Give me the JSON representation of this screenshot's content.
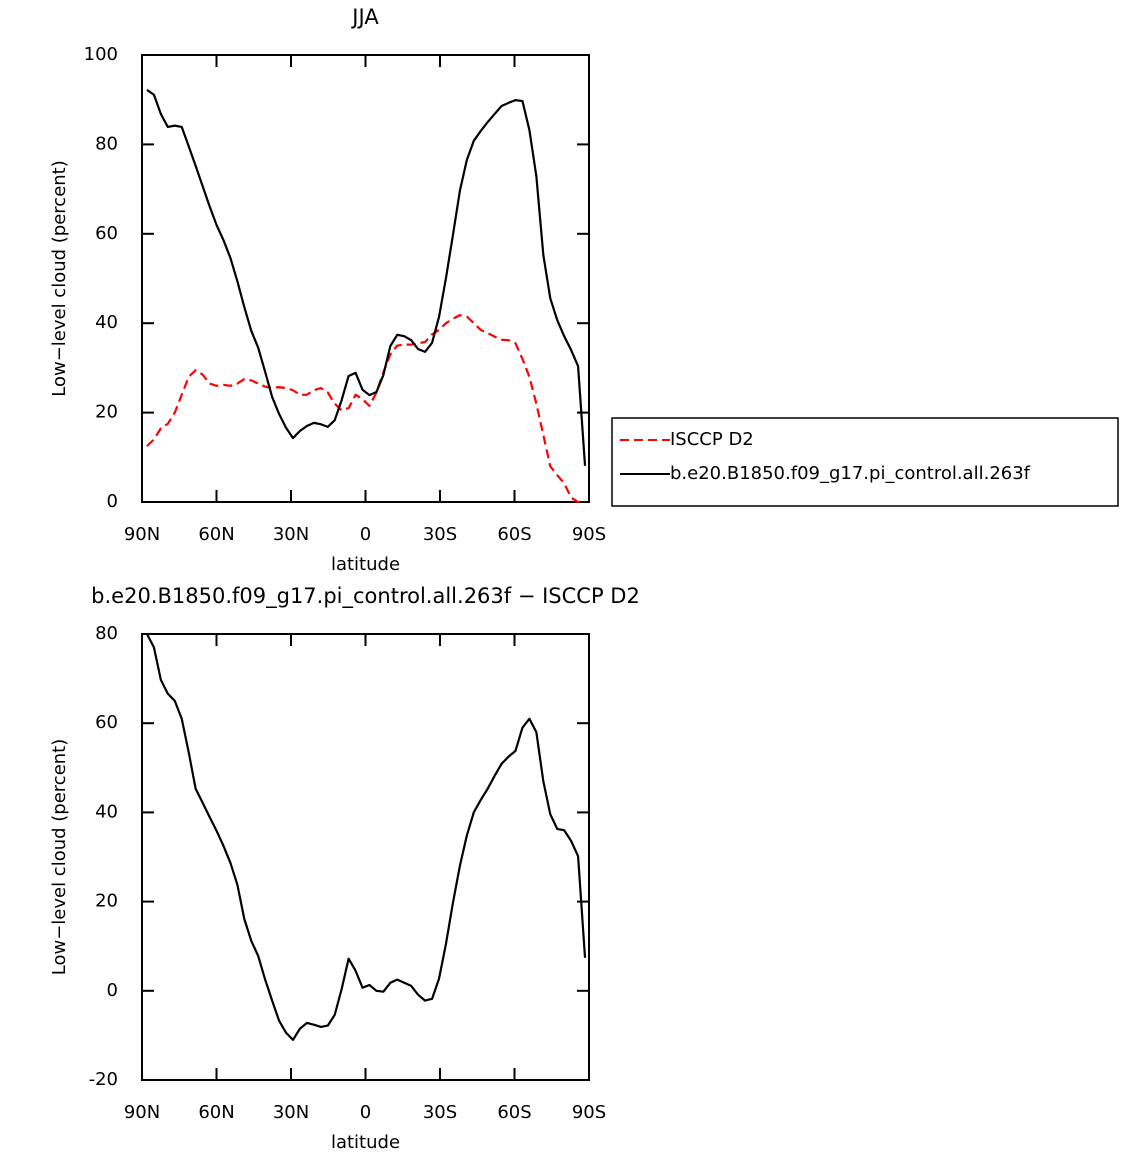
{
  "chart_data": [
    {
      "type": "line",
      "title": "JJA",
      "xlabel": "latitude",
      "ylabel": "Low−level cloud (percent)",
      "x": [
        88,
        85.2,
        82.4,
        79.6,
        76.8,
        74,
        71.2,
        68.4,
        65.6,
        62.8,
        60,
        57.2,
        54.4,
        51.6,
        48.8,
        46,
        43.2,
        40.4,
        37.6,
        34.8,
        32,
        29.2,
        26.4,
        23.6,
        20.8,
        18,
        15.2,
        12.4,
        9.6,
        6.8,
        4,
        1.2,
        -1.6,
        -4.4,
        -7.2,
        -10,
        -12.8,
        -15.6,
        -18.4,
        -21.2,
        -24,
        -26.8,
        -29.6,
        -32.4,
        -35.2,
        -38,
        -40.8,
        -43.6,
        -46.4,
        -49.2,
        -52,
        -54.8,
        -57.6,
        -60.4,
        -63.2,
        -66,
        -68.8,
        -71.6,
        -74.4,
        -77.2,
        -80,
        -82.8,
        -85.6,
        -88.4
      ],
      "series": [
        {
          "name": "ISCCP D2",
          "color": "#ff0000",
          "dash": "dashed",
          "values": [
            12.5,
            14,
            16.5,
            17.5,
            20,
            24,
            28,
            29.5,
            28.5,
            26.5,
            26,
            26.2,
            26,
            26.5,
            27.5,
            27.2,
            26.5,
            25.8,
            25.5,
            25.7,
            25.5,
            25,
            24,
            24,
            25,
            25.5,
            24.5,
            22,
            20.5,
            21,
            24,
            23,
            21.5,
            24.5,
            29,
            33,
            35,
            35.2,
            35.2,
            35.5,
            35.8,
            37.5,
            38.5,
            40,
            41,
            41.8,
            41.5,
            40,
            38.5,
            37.8,
            37,
            36.3,
            36.2,
            35.5,
            32,
            28,
            22,
            15,
            8,
            6,
            4.2,
            1,
            0,
            0
          ]
        },
        {
          "name": "b.e20.B1850.f09_g17.pi_control.all.263f",
          "color": "#000000",
          "dash": "solid",
          "values": [
            92.2,
            91.1,
            86.8,
            83.9,
            84.2,
            83.9,
            79.6,
            75.2,
            70.7,
            66.2,
            62,
            58.6,
            54.6,
            49.4,
            43.6,
            38.3,
            34.5,
            29.1,
            23.5,
            19.7,
            16.6,
            14.3,
            15.9,
            17,
            17.7,
            17.4,
            16.8,
            18.3,
            22.8,
            28.2,
            28.9,
            25.1,
            23.9,
            24.6,
            28.4,
            34.9,
            37.4,
            37.1,
            36.2,
            34.2,
            33.6,
            35.6,
            41.4,
            50.1,
            59.7,
            69.6,
            76.5,
            80.8,
            83,
            85,
            86.8,
            88.6,
            89.3,
            89.9,
            89.7,
            83.2,
            72.9,
            55.3,
            45.6,
            40.7,
            37.1,
            34,
            30.4,
            8.1
          ]
        }
      ],
      "xlim": [
        90,
        -90
      ],
      "xticks": [
        {
          "value": 90,
          "label": "90N"
        },
        {
          "value": 60,
          "label": "60N"
        },
        {
          "value": 30,
          "label": "30N"
        },
        0,
        {
          "value": -30,
          "label": "30S"
        },
        {
          "value": -60,
          "label": "60S"
        },
        {
          "value": -90,
          "label": "90S"
        }
      ],
      "ylim": [
        0,
        100
      ],
      "yticks": [
        0,
        20,
        40,
        60,
        80,
        100
      ],
      "legend": "right"
    },
    {
      "type": "line",
      "title": "b.e20.B1850.f09_g17.pi_control.all.263f − ISCCP D2",
      "xlabel": "latitude",
      "ylabel": "Low−level cloud (percent)",
      "x": [
        88,
        85.2,
        82.4,
        79.6,
        76.8,
        74,
        71.2,
        68.4,
        65.6,
        62.8,
        60,
        57.2,
        54.4,
        51.6,
        48.8,
        46,
        43.2,
        40.4,
        37.6,
        34.8,
        32,
        29.2,
        26.4,
        23.6,
        20.8,
        18,
        15.2,
        12.4,
        9.6,
        6.8,
        4,
        1.2,
        -1.6,
        -4.4,
        -7.2,
        -10,
        -12.8,
        -15.6,
        -18.4,
        -21.2,
        -24,
        -26.8,
        -29.6,
        -32.4,
        -35.2,
        -38,
        -40.8,
        -43.6,
        -46.4,
        -49.2,
        -52,
        -54.8,
        -57.6,
        -60.4,
        -63.2,
        -66,
        -68.8,
        -71.6,
        -74.4,
        -77.2,
        -80,
        -82.8,
        -85.6,
        -88.4
      ],
      "series": [
        {
          "color": "#000000",
          "dash": "solid",
          "values": [
            80,
            77,
            69.7,
            66.6,
            65,
            61,
            53.5,
            45.3,
            42.2,
            39,
            35.9,
            32.5,
            28.7,
            23.8,
            16.1,
            11.2,
            7.8,
            2.5,
            -2.2,
            -6.7,
            -9.4,
            -11,
            -8.5,
            -7.2,
            -7.6,
            -8.1,
            -7.8,
            -5.4,
            0.4,
            7.2,
            4.5,
            0.7,
            1.3,
            0,
            -0.2,
            1.8,
            2.5,
            1.8,
            1.1,
            -0.9,
            -2.2,
            -1.8,
            2.7,
            10.5,
            19.7,
            28,
            34.8,
            40,
            42.8,
            45.3,
            48.2,
            50.9,
            52.5,
            53.8,
            59,
            61,
            58,
            47,
            39.6,
            36.3,
            36,
            33.6,
            30.2,
            7.4
          ]
        }
      ],
      "xlim": [
        90,
        -90
      ],
      "xticks": [
        {
          "value": 90,
          "label": "90N"
        },
        {
          "value": 60,
          "label": "60N"
        },
        {
          "value": 30,
          "label": "30N"
        },
        0,
        {
          "value": -30,
          "label": "30S"
        },
        {
          "value": -60,
          "label": "60S"
        },
        {
          "value": -90,
          "label": "90S"
        }
      ],
      "ylim": [
        -20,
        80
      ],
      "yticks": [
        -20,
        0,
        20,
        40,
        60,
        80
      ]
    }
  ]
}
